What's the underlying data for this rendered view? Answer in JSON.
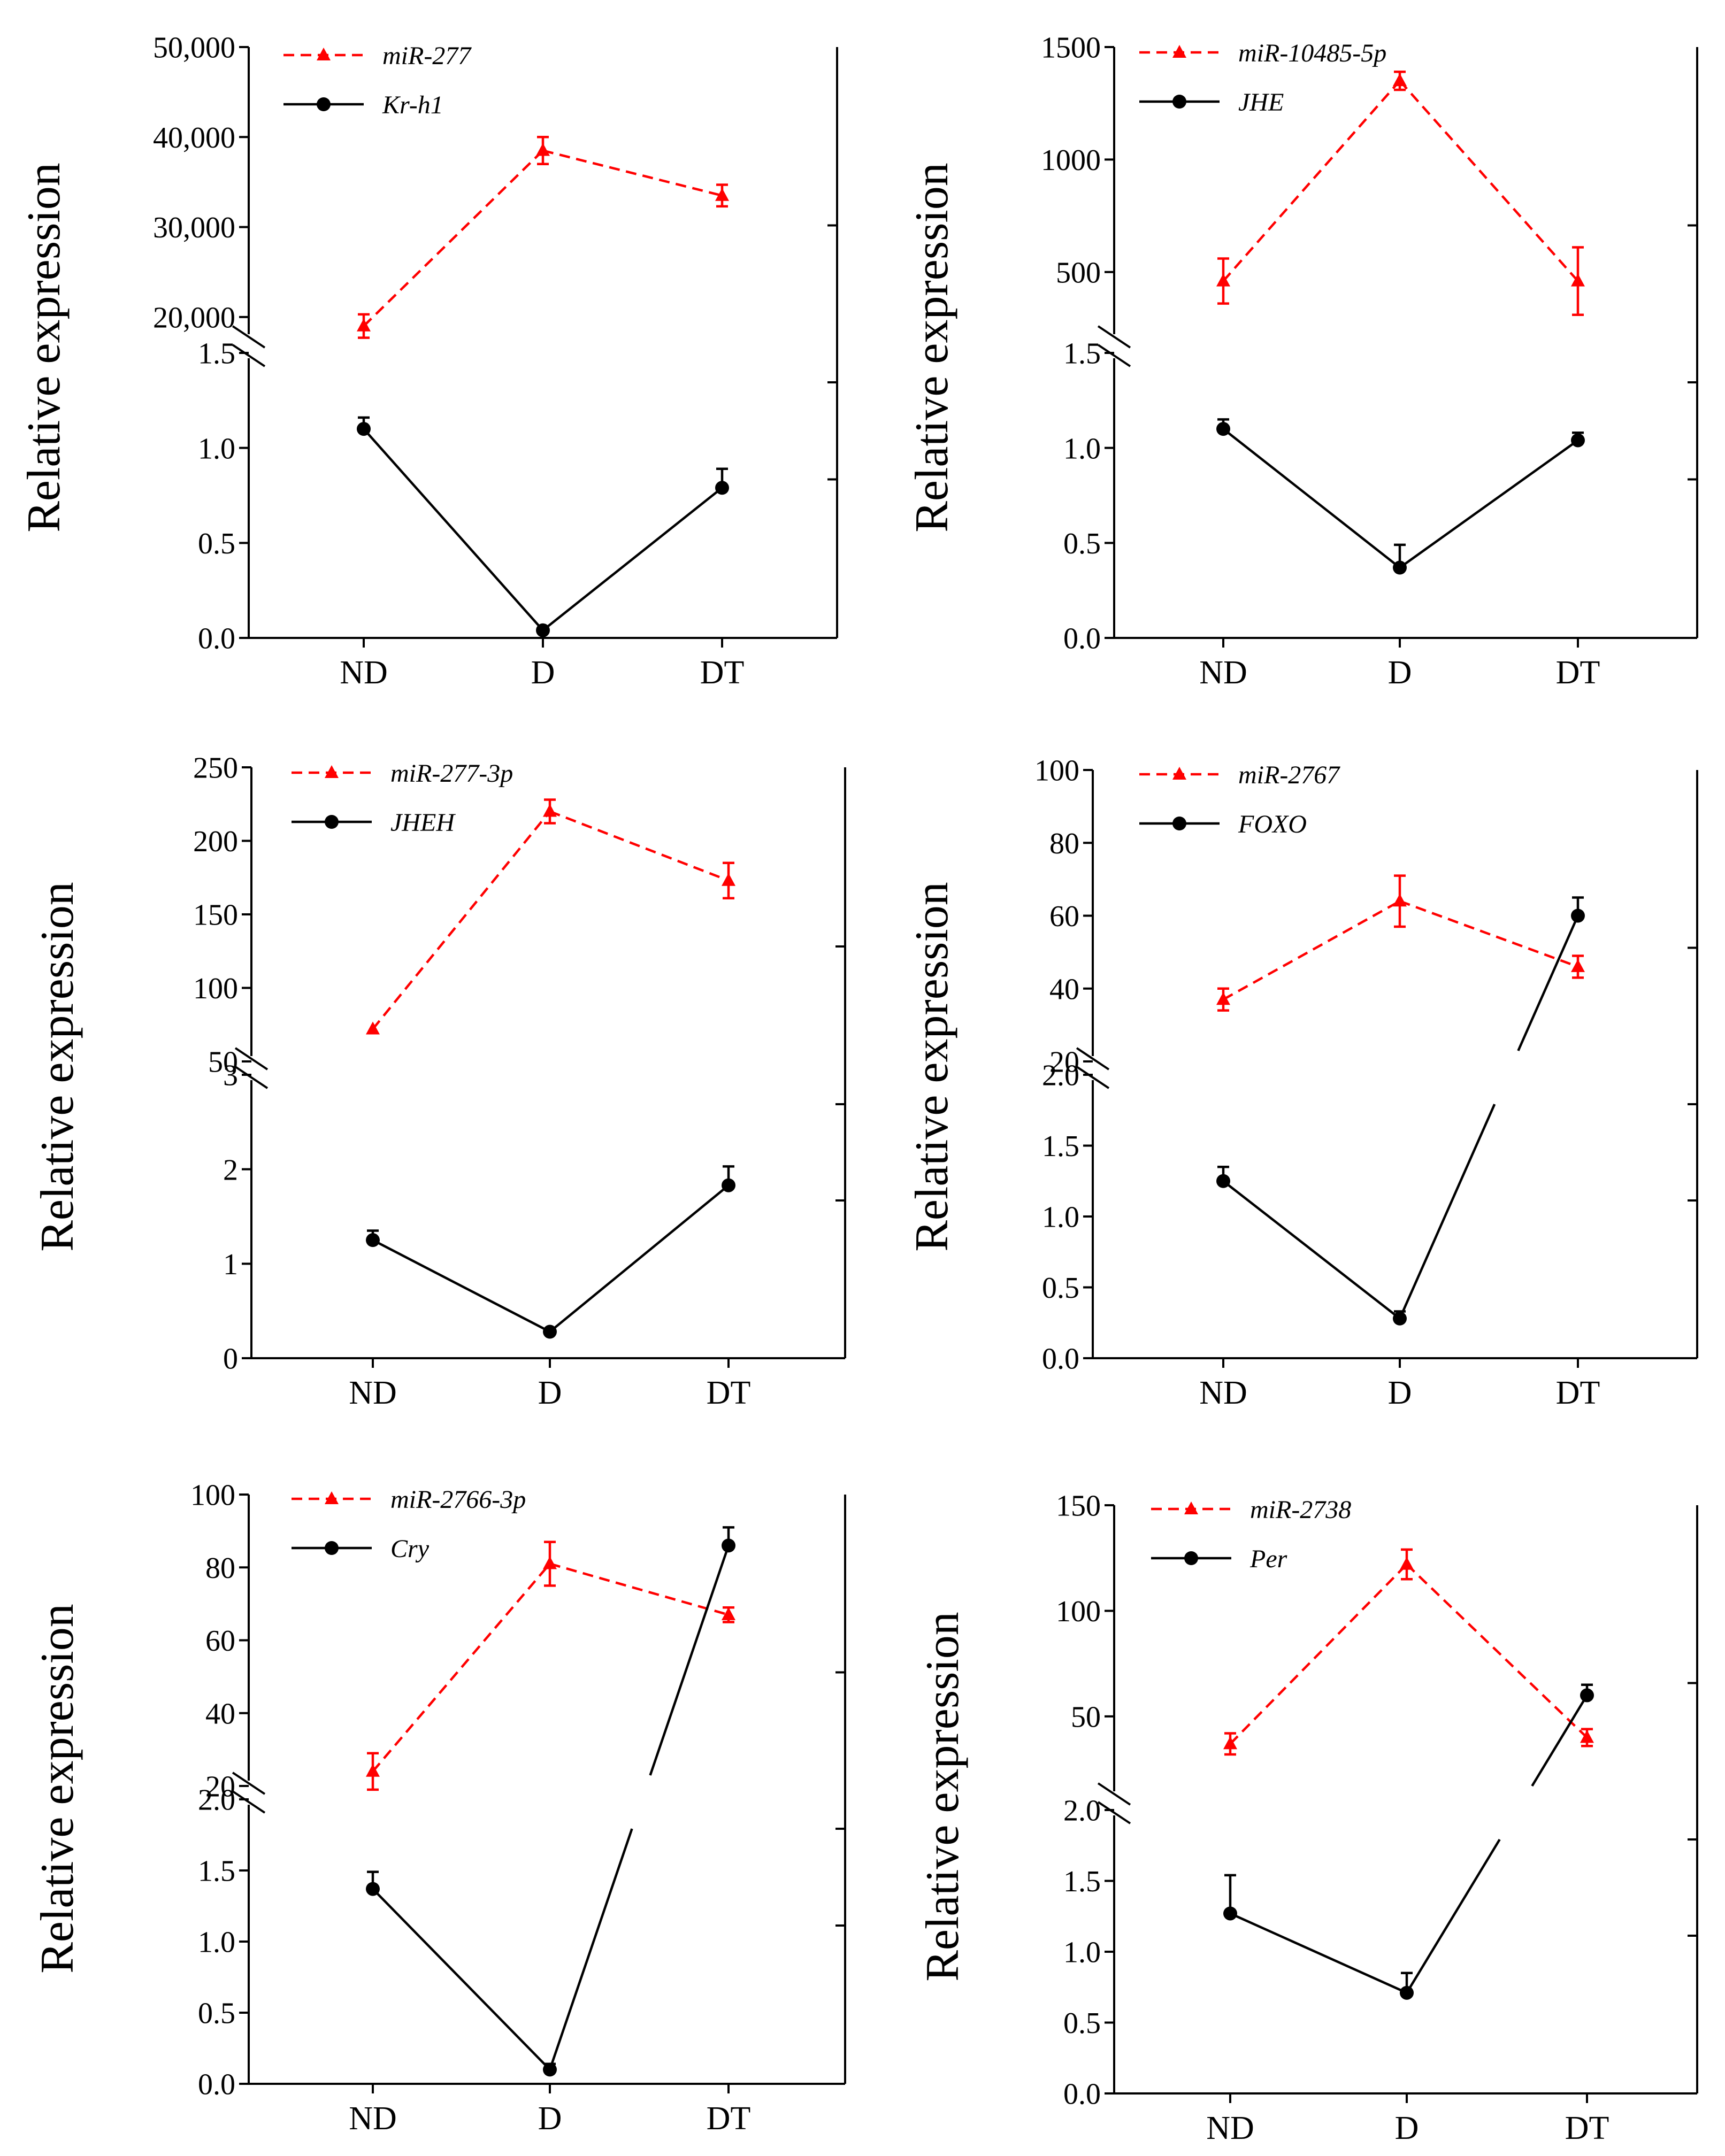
{
  "chart_data": [
    {
      "type": "line",
      "ylabel": "Relative expression",
      "categories": [
        "ND",
        "D",
        "DT"
      ],
      "axis_break": true,
      "upper_axis": {
        "ylim": [
          17500,
          50000
        ],
        "ticks": [
          "20,000",
          "30,000",
          "40,000",
          "50,000"
        ],
        "tick_values": [
          20000,
          30000,
          40000,
          50000
        ]
      },
      "lower_axis": {
        "ylim": [
          0,
          1.5
        ],
        "ticks": [
          "0.0",
          "0.5",
          "1.0",
          "1.5"
        ],
        "tick_values": [
          0,
          0.5,
          1.0,
          1.5
        ]
      },
      "series": [
        {
          "name": "miR-277",
          "style": "red-dashed-triangle",
          "color": "#ff0000",
          "axis": "upper",
          "values": [
            19000,
            38500,
            33500
          ],
          "errors": [
            1300,
            1500,
            1200
          ]
        },
        {
          "name": "Kr-h1",
          "style": "black-solid-circle",
          "color": "#000000",
          "axis": "lower",
          "values": [
            1.1,
            0.04,
            0.79
          ],
          "errors": [
            0.06,
            0.01,
            0.1
          ]
        }
      ]
    },
    {
      "type": "line",
      "ylabel": "Relative expression",
      "categories": [
        "ND",
        "D",
        "DT"
      ],
      "axis_break": true,
      "upper_axis": {
        "ylim": [
          200,
          1500
        ],
        "ticks": [
          "500",
          "1000",
          "1500"
        ],
        "tick_values": [
          500,
          1000,
          1500
        ]
      },
      "lower_axis": {
        "ylim": [
          0,
          1.5
        ],
        "ticks": [
          "0.0",
          "0.5",
          "1.0",
          "1.5"
        ],
        "tick_values": [
          0,
          0.5,
          1.0,
          1.5
        ]
      },
      "series": [
        {
          "name": "miR-10485-5p",
          "style": "red-dashed-triangle",
          "color": "#ff0000",
          "axis": "upper",
          "values": [
            460,
            1350,
            460
          ],
          "errors": [
            100,
            40,
            150
          ]
        },
        {
          "name": "JHE",
          "style": "black-solid-circle",
          "color": "#000000",
          "axis": "lower",
          "values": [
            1.1,
            0.37,
            1.04
          ],
          "errors": [
            0.05,
            0.12,
            0.04
          ]
        }
      ]
    },
    {
      "type": "line",
      "ylabel": "Relative expression",
      "categories": [
        "ND",
        "D",
        "DT"
      ],
      "axis_break": true,
      "upper_axis": {
        "ylim": [
          50,
          250
        ],
        "ticks": [
          "50",
          "100",
          "150",
          "200",
          "250"
        ],
        "tick_values": [
          50,
          100,
          150,
          200,
          250
        ]
      },
      "lower_axis": {
        "ylim": [
          0,
          3
        ],
        "ticks": [
          "0",
          "1",
          "2",
          "3"
        ],
        "tick_values": [
          0,
          1,
          2,
          3
        ]
      },
      "series": [
        {
          "name": "miR-277-3p",
          "style": "red-dashed-triangle",
          "color": "#ff0000",
          "axis": "upper",
          "values": [
            72,
            220,
            173
          ],
          "errors": [
            0,
            8,
            12
          ]
        },
        {
          "name": "JHEH",
          "style": "black-solid-circle",
          "color": "#000000",
          "axis": "lower",
          "values": [
            1.25,
            0.28,
            1.83
          ],
          "errors": [
            0.1,
            0.03,
            0.2
          ]
        }
      ]
    },
    {
      "type": "line",
      "ylabel": "Relative expression",
      "categories": [
        "ND",
        "D",
        "DT"
      ],
      "axis_break": true,
      "upper_axis": {
        "ylim": [
          20,
          100
        ],
        "ticks": [
          "20",
          "40",
          "60",
          "80",
          "100"
        ],
        "tick_values": [
          20,
          40,
          60,
          80,
          100
        ]
      },
      "lower_axis": {
        "ylim": [
          0,
          2.0
        ],
        "ticks": [
          "0.0",
          "0.5",
          "1.0",
          "1.5",
          "2.0"
        ],
        "tick_values": [
          0,
          0.5,
          1.0,
          1.5,
          2.0
        ]
      },
      "series": [
        {
          "name": "miR-2767",
          "style": "red-dashed-triangle",
          "color": "#ff0000",
          "axis": "upper",
          "values": [
            37,
            64,
            46
          ],
          "errors": [
            3,
            7,
            3
          ]
        },
        {
          "name": "FOXO",
          "style": "black-solid-circle",
          "color": "#000000",
          "axis": "lower",
          "values": [
            1.25,
            0.28,
            60
          ],
          "errors": [
            0.1,
            0.05,
            5
          ],
          "last_point_axis": "upper"
        }
      ]
    },
    {
      "type": "line",
      "ylabel": "Relative expression",
      "categories": [
        "ND",
        "D",
        "DT"
      ],
      "axis_break": true,
      "upper_axis": {
        "ylim": [
          20,
          100
        ],
        "ticks": [
          "20",
          "40",
          "60",
          "80",
          "100"
        ],
        "tick_values": [
          20,
          40,
          60,
          80,
          100
        ]
      },
      "lower_axis": {
        "ylim": [
          0,
          2.0
        ],
        "ticks": [
          "0.0",
          "0.5",
          "1.0",
          "1.5",
          "2.0"
        ],
        "tick_values": [
          0,
          0.5,
          1.0,
          1.5,
          2.0
        ]
      },
      "series": [
        {
          "name": "miR-2766-3p",
          "style": "red-dashed-triangle",
          "color": "#ff0000",
          "axis": "upper",
          "values": [
            24,
            81,
            67
          ],
          "errors": [
            5,
            6,
            2
          ]
        },
        {
          "name": "Cry",
          "style": "black-solid-circle",
          "color": "#000000",
          "axis": "lower",
          "values": [
            1.37,
            0.1,
            86
          ],
          "errors": [
            0.12,
            0.04,
            5
          ],
          "last_point_axis": "upper"
        }
      ]
    },
    {
      "type": "line",
      "ylabel": "Relative expression",
      "categories": [
        "ND",
        "D",
        "DT"
      ],
      "axis_break": true,
      "upper_axis": {
        "ylim": [
          12,
          150
        ],
        "ticks": [
          "50",
          "100",
          "150"
        ],
        "tick_values": [
          50,
          100,
          150
        ]
      },
      "lower_axis": {
        "ylim": [
          0,
          2.0
        ],
        "ticks": [
          "0.0",
          "0.5",
          "1.0",
          "1.5",
          "2.0"
        ],
        "tick_values": [
          0,
          0.5,
          1.0,
          1.5,
          2.0
        ]
      },
      "series": [
        {
          "name": "miR-2738",
          "style": "red-dashed-triangle",
          "color": "#ff0000",
          "axis": "upper",
          "values": [
            37,
            122,
            40
          ],
          "errors": [
            5,
            7,
            4
          ]
        },
        {
          "name": "Per",
          "style": "black-solid-circle",
          "color": "#000000",
          "axis": "lower",
          "values": [
            1.27,
            0.71,
            60
          ],
          "errors": [
            0.27,
            0.14,
            5
          ],
          "last_point_axis": "upper"
        }
      ]
    }
  ]
}
